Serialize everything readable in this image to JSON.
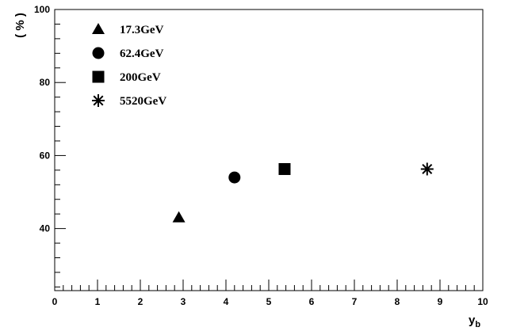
{
  "chart_data": {
    "type": "scatter",
    "title": "",
    "xlabel": "y",
    "xlabel_sub": "b",
    "ylabel": "( % )",
    "xlim": [
      0,
      10
    ],
    "ylim": [
      23,
      100
    ],
    "x_ticks": [
      0,
      1,
      2,
      3,
      4,
      5,
      6,
      7,
      8,
      9,
      10
    ],
    "x_tick_labels": [
      "0",
      "1",
      "2",
      "3",
      "4",
      "5",
      "6",
      "7",
      "8",
      "9",
      "10"
    ],
    "y_ticks": [
      40,
      60,
      80,
      100
    ],
    "y_tick_labels": [
      "40",
      "60",
      "80",
      "100"
    ],
    "grid": false,
    "legend_position": "top-left",
    "series": [
      {
        "name": "17.3GeV",
        "marker": "triangle",
        "x": [
          2.9
        ],
        "y": [
          43
        ]
      },
      {
        "name": "62.4GeV",
        "marker": "circle",
        "x": [
          4.2
        ],
        "y": [
          54
        ]
      },
      {
        "name": "200GeV",
        "marker": "square",
        "x": [
          5.37
        ],
        "y": [
          56.3
        ]
      },
      {
        "name": "5520GeV",
        "marker": "asterisk",
        "x": [
          8.7
        ],
        "y": [
          56.3
        ]
      }
    ]
  }
}
